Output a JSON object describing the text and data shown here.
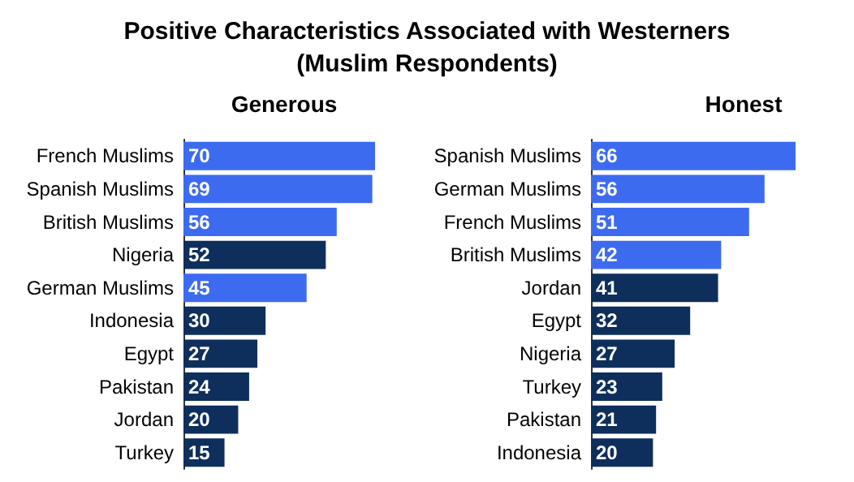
{
  "chart_data": [
    {
      "type": "bar",
      "orientation": "horizontal",
      "title": "Generous",
      "annotations": [
        "Positive Characteristics Associated with Westerners",
        "(Muslim Respondents)"
      ],
      "categories": [
        "French Muslims",
        "Spanish Muslims",
        "British Muslims",
        "Nigeria",
        "German Muslims",
        "Indonesia",
        "Egypt",
        "Pakistan",
        "Jordan",
        "Turkey"
      ],
      "values": [
        70,
        69,
        56,
        52,
        45,
        30,
        27,
        24,
        20,
        15
      ],
      "colors": [
        "#3d6bf0",
        "#3d6bf0",
        "#3d6bf0",
        "#0e2f5c",
        "#3d6bf0",
        "#0e2f5c",
        "#0e2f5c",
        "#0e2f5c",
        "#0e2f5c",
        "#0e2f5c"
      ],
      "data_labels": true
    },
    {
      "type": "bar",
      "orientation": "horizontal",
      "title": "Honest",
      "categories": [
        "Spanish Muslims",
        "German Muslims",
        "French Muslims",
        "British Muslims",
        "Jordan",
        "Egypt",
        "Nigeria",
        "Turkey",
        "Pakistan",
        "Indonesia"
      ],
      "values": [
        66,
        56,
        51,
        42,
        41,
        32,
        27,
        23,
        21,
        20
      ],
      "colors": [
        "#3d6bf0",
        "#3d6bf0",
        "#3d6bf0",
        "#3d6bf0",
        "#0e2f5c",
        "#0e2f5c",
        "#0e2f5c",
        "#0e2f5c",
        "#0e2f5c",
        "#0e2f5c"
      ],
      "data_labels": true
    }
  ]
}
